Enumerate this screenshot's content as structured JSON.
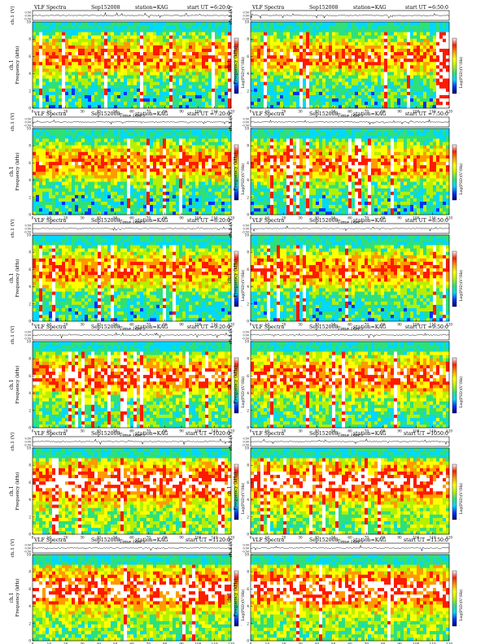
{
  "figure": {
    "panel_title_left": "VLF Spectra",
    "date": "Sep152008",
    "station": "station=KAG",
    "start_prefix": "start  UT ="
  },
  "waveform_axis": {
    "ylabel": "ch.1 (V)",
    "ticks": [
      "0.50",
      "0.00",
      "-0.50"
    ]
  },
  "spectrogram_axis": {
    "ylabel_top": "ch.1",
    "ylabel": "Frequency  (kHz)",
    "yticks": [
      "0",
      "2",
      "4",
      "6",
      "8",
      "10"
    ],
    "xlabel": "Time  (sec)",
    "xticks": [
      "0",
      "10",
      "20",
      "30",
      "40",
      "50",
      "60",
      "70",
      "80",
      "90",
      "100",
      "110",
      "120"
    ]
  },
  "colorbar": {
    "label": "Log(PSD)(V²/Hz)",
    "tick_min": "-",
    "colors": [
      "#00007a",
      "#0033ff",
      "#00d8ff",
      "#2fe07a",
      "#b6f000",
      "#ffff00",
      "#ff9a00",
      "#ff1a00",
      "#ffffff"
    ]
  },
  "chart_data": [
    {
      "type": "heatmap",
      "start_ut": "6:20:0",
      "title": "VLF Spectra  Sep152008  station=KAG  start UT =6:20:0",
      "xlabel": "Time (sec)",
      "ylabel": "Frequency (kHz)",
      "xlim": [
        0,
        120
      ],
      "ylim": [
        0,
        10
      ],
      "activity": "moderate"
    },
    {
      "type": "heatmap",
      "start_ut": "6:50:0",
      "title": "VLF Spectra  Sep152008  station=KAG  start UT =6:50:0",
      "xlabel": "Time (sec)",
      "ylabel": "Frequency (kHz)",
      "xlim": [
        0,
        120
      ],
      "ylim": [
        0,
        10
      ],
      "activity": "moderate"
    },
    {
      "type": "heatmap",
      "start_ut": "7:20:0",
      "title": "VLF Spectra  Sep152008  station=KAG  start UT =7:20:0",
      "xlabel": "Time (sec)",
      "ylabel": "Frequency (kHz)",
      "xlim": [
        0,
        120
      ],
      "ylim": [
        0,
        10
      ],
      "activity": "moderate"
    },
    {
      "type": "heatmap",
      "start_ut": "7:50:0",
      "title": "VLF Spectra  Sep152008  station=KAG  start UT =7:50:0",
      "xlabel": "Time (sec)",
      "ylabel": "Frequency (kHz)",
      "xlim": [
        0,
        120
      ],
      "ylim": [
        0,
        10
      ],
      "activity": "moderate"
    },
    {
      "type": "heatmap",
      "start_ut": "8:20:0",
      "title": "VLF Spectra  Sep152008  station=KAG  start UT =8:20:0",
      "xlabel": "Time (sec)",
      "ylabel": "Frequency (kHz)",
      "xlim": [
        0,
        120
      ],
      "ylim": [
        0,
        10
      ],
      "activity": "moderate"
    },
    {
      "type": "heatmap",
      "start_ut": "8:50:0",
      "title": "VLF Spectra  Sep152008  station=KAG  start UT =8:50:0",
      "xlabel": "Time (sec)",
      "ylabel": "Frequency (kHz)",
      "xlim": [
        0,
        120
      ],
      "ylim": [
        0,
        10
      ],
      "activity": "moderate"
    },
    {
      "type": "heatmap",
      "start_ut": "9:20:0",
      "title": "VLF Spectra  Sep152008  station=KAG  start UT =9:20:0",
      "xlabel": "Time (sec)",
      "ylabel": "Frequency (kHz)",
      "xlim": [
        0,
        120
      ],
      "ylim": [
        0,
        10
      ],
      "activity": "high"
    },
    {
      "type": "heatmap",
      "start_ut": "9:50:0",
      "title": "VLF Spectra  Sep152008  station=KAG  start UT =9:50:0",
      "xlabel": "Time (sec)",
      "ylabel": "Frequency (kHz)",
      "xlim": [
        0,
        120
      ],
      "ylim": [
        0,
        10
      ],
      "activity": "high"
    },
    {
      "type": "heatmap",
      "start_ut": "1020:0",
      "title": "VLF Spectra  Sep152008  station=KAG  start UT =1020:0",
      "xlabel": "Time (sec)",
      "ylabel": "Frequency (kHz)",
      "xlim": [
        0,
        120
      ],
      "ylim": [
        0,
        10
      ],
      "activity": "very high"
    },
    {
      "type": "heatmap",
      "start_ut": "1050:0",
      "title": "VLF Spectra  Sep152008  station=KAG  start UT =1050:0",
      "xlabel": "Time (sec)",
      "ylabel": "Frequency (kHz)",
      "xlim": [
        0,
        120
      ],
      "ylim": [
        0,
        10
      ],
      "activity": "very high"
    },
    {
      "type": "heatmap",
      "start_ut": "1120:0",
      "title": "VLF Spectra  Sep152008  station=KAG  start UT =1120:0",
      "xlabel": "Time (sec)",
      "ylabel": "Frequency (kHz)",
      "xlim": [
        0,
        120
      ],
      "ylim": [
        0,
        10
      ],
      "activity": "very high"
    },
    {
      "type": "heatmap",
      "start_ut": "1150:0",
      "title": "VLF Spectra  Sep152008  station=KAG  start UT =1150:0",
      "xlabel": "Time (sec)",
      "ylabel": "Frequency (kHz)",
      "xlim": [
        0,
        120
      ],
      "ylim": [
        0,
        10
      ],
      "activity": "very high"
    }
  ]
}
